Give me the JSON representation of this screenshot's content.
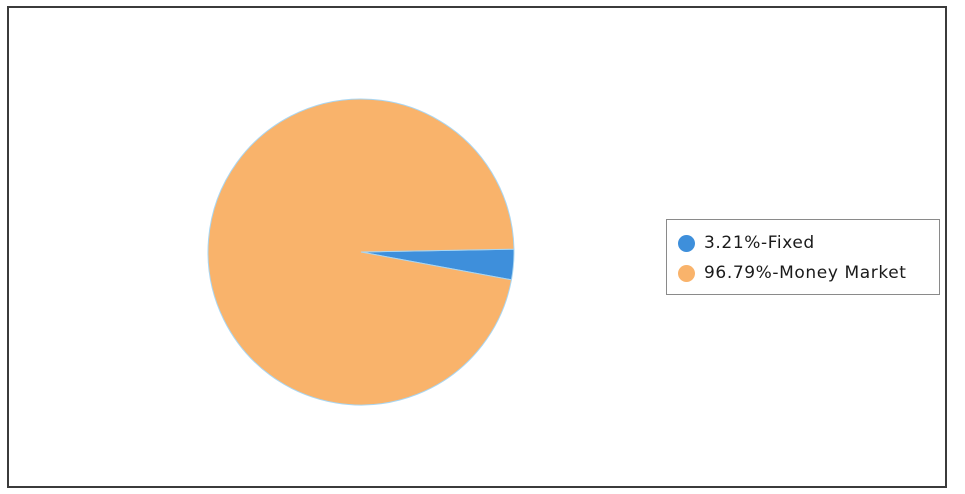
{
  "chart_data": {
    "type": "pie",
    "slices": [
      {
        "label": "Fixed",
        "value": 3.21,
        "legend_text": "3.21%-Fixed",
        "color": "#3e8fdb"
      },
      {
        "label": "Money Market",
        "value": 96.79,
        "legend_text": "96.79%-Money Market",
        "color": "#f9b36b"
      }
    ],
    "legend_position": "right",
    "slice_edge_color": "#a9d6f2"
  },
  "legend": {
    "items": [
      {
        "text": "3.21%-Fixed",
        "color": "#3e8fdb"
      },
      {
        "text": "96.79%-Money Market",
        "color": "#f9b36b"
      }
    ]
  }
}
